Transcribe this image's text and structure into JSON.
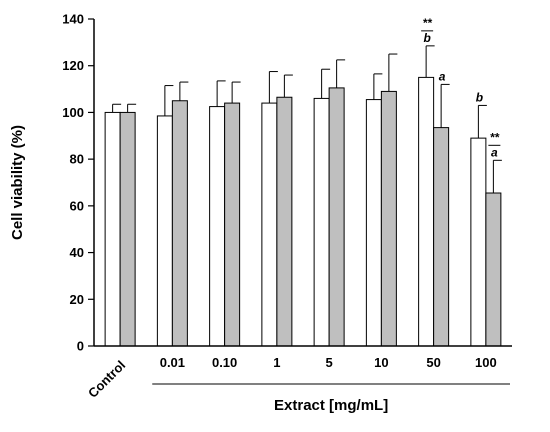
{
  "chart_data": {
    "type": "bar",
    "title": "",
    "ylabel": "Cell viability (%)",
    "xlabel": "Extract [mg/mL]",
    "ylim": [
      0,
      140
    ],
    "yticks": [
      0,
      20,
      40,
      60,
      80,
      100,
      120,
      140
    ],
    "grid": false,
    "categories": [
      "Control",
      "0.01",
      "0.10",
      "1",
      "5",
      "10",
      "50",
      "100"
    ],
    "series": [
      {
        "fill": "#ffffff",
        "values": [
          100,
          98.5,
          102.5,
          104,
          106,
          105.5,
          115,
          89
        ],
        "errors": [
          3.5,
          13,
          11,
          13.5,
          12.5,
          11,
          13.5,
          14
        ]
      },
      {
        "fill": "#bfbfbf",
        "values": [
          100,
          105,
          104,
          106.5,
          110.5,
          109,
          93.5,
          65.5
        ],
        "errors": [
          3.5,
          8,
          9,
          9.5,
          12,
          16,
          18.5,
          14
        ]
      }
    ],
    "annotations": [
      {
        "category": "50",
        "series": 0,
        "texts": [
          "**",
          "b"
        ]
      },
      {
        "category": "50",
        "series": 1,
        "texts": [
          "a"
        ]
      },
      {
        "category": "100",
        "series": 0,
        "texts": [
          "b"
        ]
      },
      {
        "category": "100",
        "series": 1,
        "texts": [
          "**",
          "a"
        ]
      }
    ]
  }
}
